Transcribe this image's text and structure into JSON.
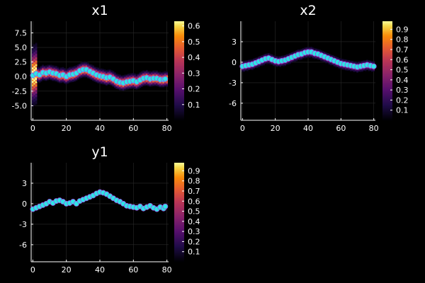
{
  "chart_data": [
    {
      "type": "heatmap",
      "title": "x1",
      "xlabel": "",
      "ylabel": "",
      "xlim": [
        -1,
        81
      ],
      "ylim": [
        -7.5,
        9.5
      ],
      "xticks": [
        0,
        20,
        40,
        60,
        80
      ],
      "yticks": [
        -5.0,
        -2.5,
        0.0,
        2.5,
        5.0,
        7.5
      ],
      "ytick_labels": [
        "-5.0",
        "-2.5",
        "0.0",
        "2.5",
        "5.0",
        "7.5"
      ],
      "grid": true,
      "colorbar": {
        "min": 0.0,
        "max": 0.63,
        "ticks": [
          0.1,
          0.2,
          0.3,
          0.4,
          0.5,
          0.6
        ],
        "labels": [
          "0.1",
          "0.2",
          "0.3",
          "0.4",
          "0.5",
          "0.6"
        ]
      },
      "mean_path": [
        [
          0,
          0.2
        ],
        [
          2,
          0.5
        ],
        [
          4,
          0.3
        ],
        [
          6,
          0.7
        ],
        [
          8,
          0.6
        ],
        [
          10,
          0.8
        ],
        [
          12,
          0.6
        ],
        [
          14,
          0.5
        ],
        [
          16,
          0.2
        ],
        [
          18,
          0.3
        ],
        [
          20,
          0.0
        ],
        [
          22,
          0.3
        ],
        [
          24,
          0.4
        ],
        [
          26,
          0.6
        ],
        [
          28,
          1.0
        ],
        [
          30,
          1.2
        ],
        [
          32,
          1.2
        ],
        [
          34,
          0.9
        ],
        [
          36,
          0.6
        ],
        [
          38,
          0.3
        ],
        [
          40,
          0.1
        ],
        [
          42,
          0.0
        ],
        [
          44,
          -0.2
        ],
        [
          46,
          -0.1
        ],
        [
          48,
          -0.4
        ],
        [
          50,
          -0.8
        ],
        [
          52,
          -1.0
        ],
        [
          54,
          -1.1
        ],
        [
          56,
          -0.9
        ],
        [
          58,
          -0.8
        ],
        [
          60,
          -0.7
        ],
        [
          62,
          -0.9
        ],
        [
          64,
          -0.6
        ],
        [
          66,
          -0.3
        ],
        [
          68,
          -0.2
        ],
        [
          70,
          -0.4
        ],
        [
          72,
          -0.3
        ],
        [
          74,
          -0.3
        ],
        [
          76,
          -0.5
        ],
        [
          78,
          -0.5
        ],
        [
          79,
          -0.4
        ]
      ],
      "points": {
        "x": [
          0,
          2,
          4,
          6,
          8,
          10,
          12,
          14,
          16,
          18,
          20,
          22,
          24,
          26,
          28,
          30,
          32,
          34,
          36,
          38,
          40,
          42,
          44,
          46,
          48,
          50,
          52,
          54,
          56,
          58,
          60,
          62,
          64,
          66,
          68,
          70,
          72,
          74,
          76,
          78,
          79
        ],
        "y": [
          0.2,
          0.5,
          0.3,
          0.7,
          0.6,
          0.8,
          0.6,
          0.5,
          0.2,
          0.3,
          0.0,
          0.3,
          0.4,
          0.6,
          1.0,
          1.2,
          1.2,
          0.9,
          0.6,
          0.3,
          0.1,
          0.0,
          -0.2,
          -0.1,
          -0.4,
          -0.8,
          -1.0,
          -1.1,
          -0.9,
          -0.8,
          -0.7,
          -0.9,
          -0.6,
          -0.3,
          -0.2,
          -0.4,
          -0.3,
          -0.3,
          -0.5,
          -0.5,
          -0.4
        ]
      }
    },
    {
      "type": "heatmap",
      "title": "x2",
      "xlabel": "",
      "ylabel": "",
      "xlim": [
        -1,
        81
      ],
      "ylim": [
        -8.5,
        6.0
      ],
      "xticks": [
        0,
        20,
        40,
        60,
        80
      ],
      "yticks": [
        -6,
        -3,
        0,
        3
      ],
      "ytick_labels": [
        "-6",
        "-3",
        "0",
        "3"
      ],
      "grid": true,
      "colorbar": {
        "min": 0.0,
        "max": 0.98,
        "ticks": [
          0.1,
          0.2,
          0.3,
          0.4,
          0.5,
          0.6,
          0.7,
          0.8,
          0.9
        ],
        "labels": [
          "0.1",
          "0.2",
          "0.3",
          "0.4",
          "0.5",
          "0.6",
          "0.7",
          "0.8",
          "0.9"
        ]
      },
      "mean_path": [
        [
          0,
          -0.6
        ],
        [
          2,
          -0.5
        ],
        [
          4,
          -0.4
        ],
        [
          6,
          -0.3
        ],
        [
          8,
          -0.1
        ],
        [
          10,
          0.1
        ],
        [
          12,
          0.3
        ],
        [
          14,
          0.5
        ],
        [
          16,
          0.6
        ],
        [
          18,
          0.4
        ],
        [
          20,
          0.2
        ],
        [
          22,
          0.1
        ],
        [
          24,
          0.2
        ],
        [
          26,
          0.3
        ],
        [
          28,
          0.5
        ],
        [
          30,
          0.7
        ],
        [
          32,
          0.9
        ],
        [
          34,
          1.1
        ],
        [
          36,
          1.2
        ],
        [
          38,
          1.4
        ],
        [
          40,
          1.5
        ],
        [
          42,
          1.5
        ],
        [
          44,
          1.3
        ],
        [
          46,
          1.2
        ],
        [
          48,
          1.0
        ],
        [
          50,
          0.8
        ],
        [
          52,
          0.6
        ],
        [
          54,
          0.4
        ],
        [
          56,
          0.2
        ],
        [
          58,
          0.0
        ],
        [
          60,
          -0.2
        ],
        [
          62,
          -0.3
        ],
        [
          64,
          -0.4
        ],
        [
          66,
          -0.5
        ],
        [
          68,
          -0.6
        ],
        [
          70,
          -0.7
        ],
        [
          72,
          -0.6
        ],
        [
          74,
          -0.5
        ],
        [
          76,
          -0.4
        ],
        [
          78,
          -0.5
        ],
        [
          80,
          -0.6
        ]
      ],
      "points": {
        "x": [
          0,
          2,
          4,
          6,
          8,
          10,
          12,
          14,
          16,
          18,
          20,
          22,
          24,
          26,
          28,
          30,
          32,
          34,
          36,
          38,
          40,
          42,
          44,
          46,
          48,
          50,
          52,
          54,
          56,
          58,
          60,
          62,
          64,
          66,
          68,
          70,
          72,
          74,
          76,
          78,
          80
        ],
        "y": [
          -0.6,
          -0.5,
          -0.4,
          -0.3,
          -0.1,
          0.1,
          0.3,
          0.5,
          0.6,
          0.4,
          0.2,
          0.1,
          0.2,
          0.3,
          0.5,
          0.7,
          0.9,
          1.1,
          1.2,
          1.4,
          1.5,
          1.5,
          1.3,
          1.2,
          1.0,
          0.8,
          0.6,
          0.4,
          0.2,
          0.0,
          -0.2,
          -0.3,
          -0.4,
          -0.5,
          -0.6,
          -0.7,
          -0.6,
          -0.5,
          -0.4,
          -0.5,
          -0.6
        ]
      }
    },
    {
      "type": "heatmap",
      "title": "y1",
      "xlabel": "",
      "ylabel": "",
      "xlim": [
        -1,
        81
      ],
      "ylim": [
        -8.5,
        6.0
      ],
      "xticks": [
        0,
        20,
        40,
        60,
        80
      ],
      "yticks": [
        -6,
        -3,
        0,
        3
      ],
      "ytick_labels": [
        "-6",
        "-3",
        "0",
        "3"
      ],
      "grid": true,
      "colorbar": {
        "min": 0.0,
        "max": 0.98,
        "ticks": [
          0.1,
          0.2,
          0.3,
          0.4,
          0.5,
          0.6,
          0.7,
          0.8,
          0.9
        ],
        "labels": [
          "0.1",
          "0.2",
          "0.3",
          "0.4",
          "0.5",
          "0.6",
          "0.7",
          "0.8",
          "0.9"
        ]
      },
      "mean_path": [],
      "points": {
        "x": [
          0,
          2,
          4,
          6,
          8,
          10,
          12,
          14,
          16,
          18,
          20,
          22,
          24,
          26,
          28,
          30,
          32,
          34,
          36,
          38,
          40,
          42,
          44,
          46,
          48,
          50,
          52,
          54,
          56,
          58,
          60,
          62,
          64,
          66,
          68,
          70,
          72,
          74,
          76,
          78,
          79
        ],
        "y": [
          -0.8,
          -0.6,
          -0.4,
          -0.2,
          0.0,
          0.3,
          0.1,
          0.4,
          0.5,
          0.3,
          0.0,
          0.1,
          0.3,
          0.0,
          0.4,
          0.6,
          0.8,
          1.0,
          1.2,
          1.5,
          1.7,
          1.6,
          1.4,
          1.1,
          0.8,
          0.5,
          0.3,
          0.0,
          -0.3,
          -0.4,
          -0.5,
          -0.6,
          -0.4,
          -0.7,
          -0.5,
          -0.3,
          -0.6,
          -0.8,
          -0.5,
          -0.7,
          -0.4
        ]
      }
    }
  ],
  "colors": {
    "background": "#000000",
    "marker_fill": "#2ee6e6",
    "marker_edge": "#9a4fe0",
    "grid": "#2a2a2a",
    "axis": "#ffffff"
  }
}
